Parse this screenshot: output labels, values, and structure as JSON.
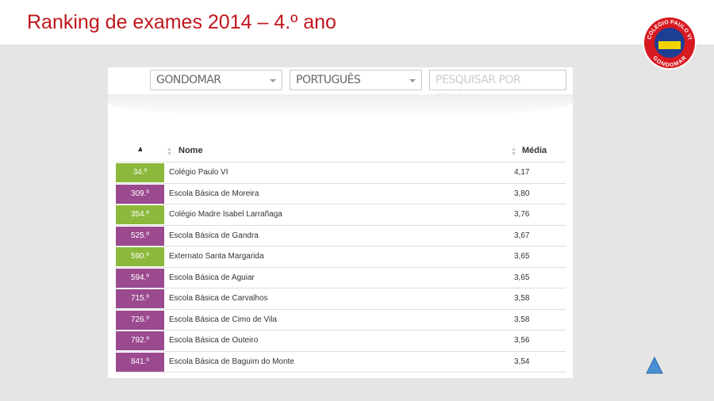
{
  "title": "Ranking de exames 2014 – 4.º ano",
  "logo": {
    "top": "COLEGIO PAULO VI",
    "bottom": "GONDOMAR"
  },
  "filters": {
    "district": "GONDOMAR",
    "subject": "PORTUGUÊS",
    "search_placeholder": "PESQUISAR POR ESCOLA"
  },
  "table": {
    "headers": [
      "Nome",
      "Média"
    ],
    "rows": [
      {
        "rank": "34.º",
        "name": "Colégio Paulo VI",
        "media": "4,17",
        "color": "#8cb83c"
      },
      {
        "rank": "309.º",
        "name": "Escola Básica de Moreira",
        "media": "3,80",
        "color": "#9b4a8f"
      },
      {
        "rank": "354.º",
        "name": "Colégio Madre Isabel Larrañaga",
        "media": "3,76",
        "color": "#8cb83c"
      },
      {
        "rank": "525.º",
        "name": "Escola Básica de Gandra",
        "media": "3,67",
        "color": "#9b4a8f"
      },
      {
        "rank": "590.º",
        "name": "Externato Santa Margarida",
        "media": "3,65",
        "color": "#8cb83c"
      },
      {
        "rank": "594.º",
        "name": "Escola Básica de Aguiar",
        "media": "3,65",
        "color": "#9b4a8f"
      },
      {
        "rank": "715.º",
        "name": "Escola Básica de Carvalhos",
        "media": "3,58",
        "color": "#9b4a8f"
      },
      {
        "rank": "726.º",
        "name": "Escola Básica de Cimo de Vila",
        "media": "3,58",
        "color": "#9b4a8f"
      },
      {
        "rank": "792.º",
        "name": "Escola Básica de Outeiro",
        "media": "3,56",
        "color": "#9b4a8f"
      },
      {
        "rank": "841.º",
        "name": "Escola Básica de Baguim do Monte",
        "media": "3,54",
        "color": "#9b4a8f"
      }
    ]
  }
}
